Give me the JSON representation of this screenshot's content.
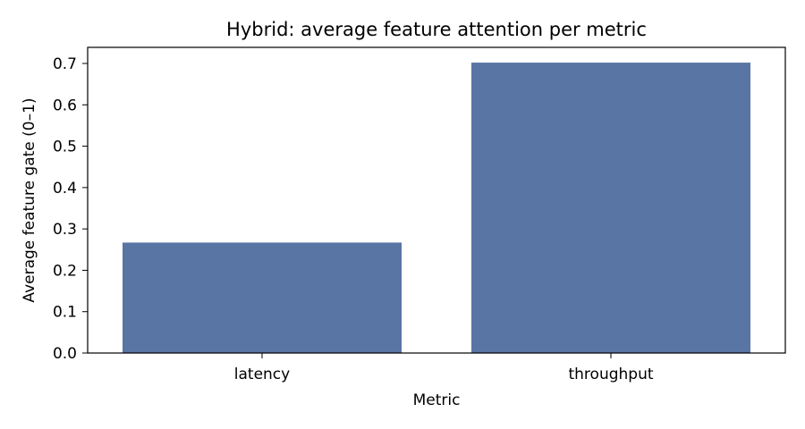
{
  "chart_data": {
    "type": "bar",
    "title": "Hybrid: average feature attention per metric",
    "xlabel": "Metric",
    "ylabel": "Average feature gate (0–1)",
    "categories": [
      "latency",
      "throughput"
    ],
    "values": [
      0.267,
      0.702
    ],
    "ylim": [
      0,
      0.7
    ],
    "yticks": [
      0.0,
      0.1,
      0.2,
      0.3,
      0.4,
      0.5,
      0.6,
      0.7
    ],
    "grid": false,
    "bar_color": "#5875a4"
  }
}
